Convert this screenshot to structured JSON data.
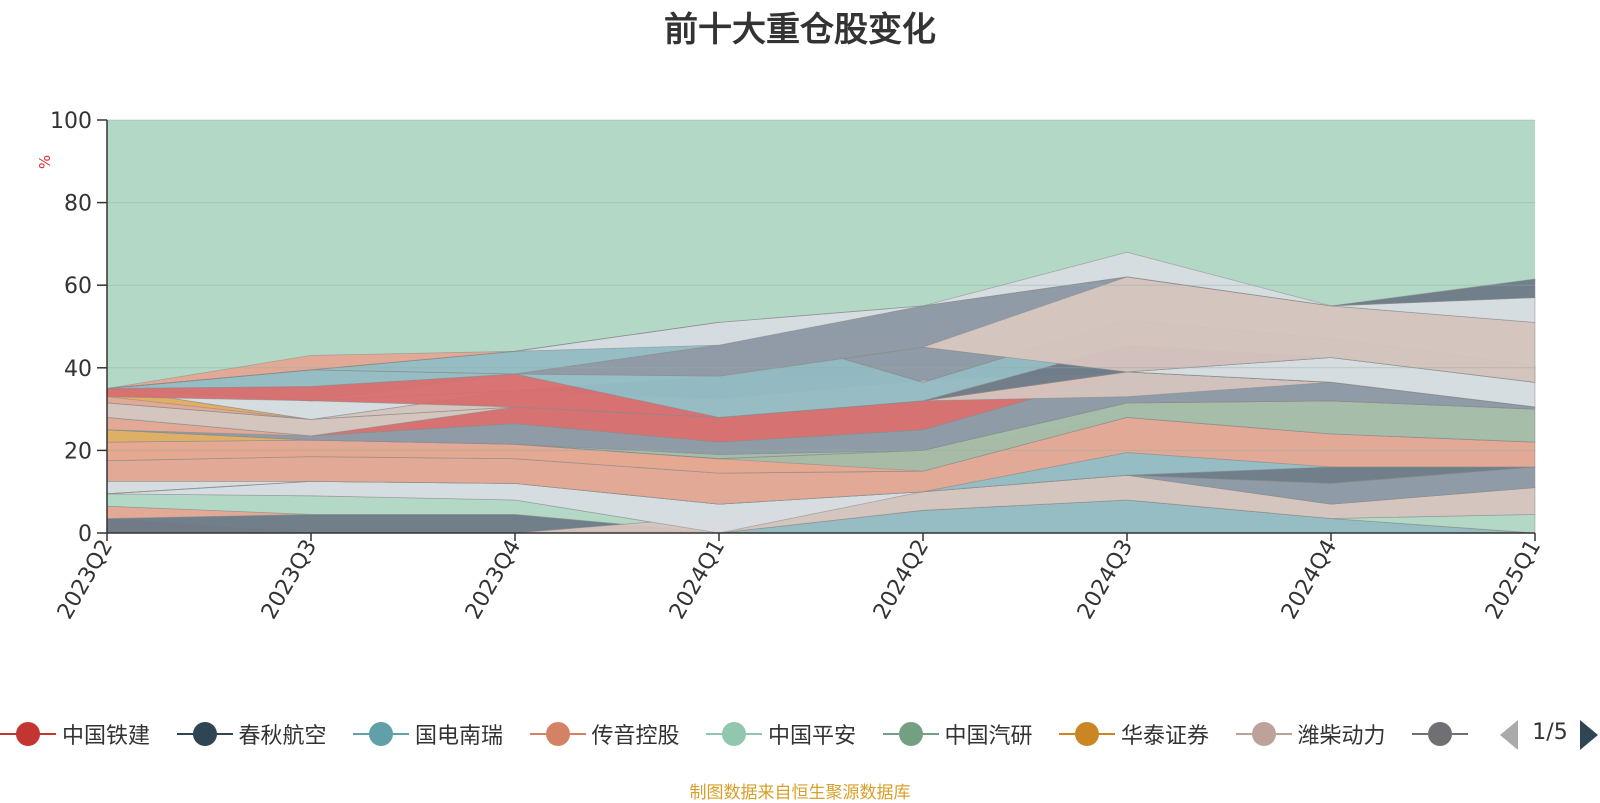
{
  "title": "前十大重仓股变化",
  "source": "制图数据来自恒生聚源数据库",
  "pager": {
    "text": "1/5"
  },
  "colors": {
    "background_area": "#b3d9c6",
    "grid": "#8fb0a0",
    "axis": "#333333",
    "unit": "#dd3333"
  },
  "chart_data": {
    "type": "area",
    "ylabel": "%",
    "ylim": [
      0,
      100
    ],
    "yticks": [
      0,
      20,
      40,
      60,
      80,
      100
    ],
    "grid": true,
    "legend_position": "bottom",
    "x": [
      "2023Q2",
      "2023Q3",
      "2023Q4",
      "2024Q1",
      "2024Q2",
      "2024Q3",
      "2024Q4",
      "2025Q1"
    ],
    "legend": [
      {
        "name": "中国铁建",
        "color": "#c23531"
      },
      {
        "name": "春秋航空",
        "color": "#2f4554"
      },
      {
        "name": "国电南瑞",
        "color": "#61a0a8"
      },
      {
        "name": "传音控股",
        "color": "#d48265"
      },
      {
        "name": "中国平安",
        "color": "#91c7ae"
      },
      {
        "name": "中国汽研",
        "color": "#749f83"
      },
      {
        "name": "华泰证券",
        "color": "#ca8622"
      },
      {
        "name": "潍柴动力",
        "color": "#bda29a"
      },
      {
        "name": "",
        "color": "#6e7074"
      }
    ],
    "bands": [
      {
        "color": "#d86e6e",
        "lower": [
          0,
          0,
          0,
          0,
          0,
          0,
          0,
          0
        ],
        "upper": [
          3.5,
          0,
          0,
          0,
          0,
          0,
          0,
          0
        ]
      },
      {
        "color": "#6e7a88",
        "lower": [
          0,
          0,
          0,
          0,
          0,
          0,
          0,
          0
        ],
        "upper": [
          3.5,
          4.5,
          4.5,
          0,
          0,
          0,
          0,
          0
        ]
      },
      {
        "color": "#93bcc3",
        "lower": [
          0,
          0,
          0,
          0,
          0,
          0,
          0,
          0
        ],
        "upper": [
          0,
          0,
          0,
          0,
          5.5,
          8,
          3.5,
          0
        ]
      },
      {
        "color": "#e5a893",
        "lower": [
          3.5,
          4.5,
          4.5,
          0,
          5.5,
          8,
          3.5,
          0
        ],
        "upper": [
          6.5,
          4.5,
          4.5,
          0,
          5.5,
          8,
          3.5,
          0
        ]
      },
      {
        "color": "#b3d9c6",
        "lower": [
          6.5,
          4.5,
          4.5,
          0,
          5.5,
          8,
          3.5,
          0
        ],
        "upper": [
          9.5,
          9,
          8,
          0,
          5.5,
          8,
          3.5,
          4.5
        ]
      },
      {
        "color": "#d6c4be",
        "lower": [
          0,
          0,
          0,
          0,
          5.5,
          8,
          3.5,
          4.5
        ],
        "upper": [
          0,
          0,
          0,
          4,
          10,
          14,
          7,
          11
        ]
      },
      {
        "color": "#d8dde3",
        "lower": [
          9.5,
          9,
          8,
          0,
          10,
          14,
          7,
          11
        ],
        "upper": [
          12.5,
          12.5,
          12,
          7,
          10,
          14,
          7,
          11
        ]
      },
      {
        "color": "#8d99a6",
        "lower": [
          9.5,
          12.5,
          12,
          7,
          10,
          14,
          7,
          11
        ],
        "upper": [
          9.5,
          12.5,
          12,
          7,
          10,
          14,
          12,
          16
        ]
      },
      {
        "color": "#6e7a88",
        "lower": [
          9.5,
          12.5,
          12,
          7,
          10,
          14,
          12,
          16
        ],
        "upper": [
          9.5,
          12.5,
          12,
          7,
          10,
          14,
          16,
          16
        ]
      },
      {
        "color": "#93bcc3",
        "lower": [
          9.5,
          12.5,
          12,
          7,
          10,
          14,
          16,
          16
        ],
        "upper": [
          9.5,
          12.5,
          12,
          7,
          10,
          19.5,
          16,
          16
        ]
      },
      {
        "color": "#e5a893",
        "lower": [
          12.5,
          12.5,
          12,
          7,
          10,
          19.5,
          16,
          16
        ],
        "upper": [
          17.5,
          18.5,
          18,
          14.5,
          15,
          28,
          24,
          22
        ]
      },
      {
        "color": "#e0ae62",
        "lower": [
          17.5,
          18.5,
          18,
          14.5,
          15,
          28,
          24,
          22
        ],
        "upper": [
          22,
          20.5,
          20.5,
          18,
          15,
          28,
          24,
          22
        ]
      },
      {
        "color": "#e5a893",
        "lower": [
          17.5,
          18.5,
          18,
          14.5,
          15,
          28,
          24,
          22
        ],
        "upper": [
          22,
          22.5,
          21.5,
          18,
          20,
          28,
          24,
          22
        ]
      },
      {
        "color": "#a4bca8",
        "lower": [
          22,
          22.5,
          21.5,
          18,
          15,
          28,
          24,
          22
        ],
        "upper": [
          22,
          22.5,
          21.5,
          19,
          20,
          31.5,
          32,
          30
        ]
      },
      {
        "color": "#e0ae62",
        "lower": [
          22,
          22.5,
          21.5,
          18,
          20,
          31.5,
          32,
          30
        ],
        "upper": [
          25,
          22.5,
          21.5,
          18,
          20,
          31.5,
          32,
          30
        ]
      },
      {
        "color": "#e5a893",
        "lower": [
          25,
          22.5,
          21.5,
          18,
          20,
          31.5,
          32,
          30
        ],
        "upper": [
          28,
          23.5,
          21.5,
          18,
          20,
          31.5,
          32,
          30
        ]
      },
      {
        "color": "#8d99a6",
        "lower": [
          25,
          22.5,
          21.5,
          19,
          20,
          31.5,
          32,
          30
        ],
        "upper": [
          25,
          23.5,
          26.5,
          22,
          25,
          39,
          36.5,
          30.5
        ]
      },
      {
        "color": "#d86e6e",
        "lower": [
          28,
          23.5,
          26.5,
          22,
          25,
          39,
          36.5,
          30.5
        ],
        "upper": [
          28,
          23.5,
          30.5,
          28,
          32,
          39,
          36.5,
          30.5
        ]
      },
      {
        "color": "#d6c4be",
        "lower": [
          28,
          23.5,
          30.5,
          28,
          32,
          33,
          36.5,
          30.5
        ],
        "upper": [
          31.5,
          27.5,
          34.5,
          32.5,
          37,
          39,
          36.5,
          30.5
        ]
      },
      {
        "color": "#e5a893",
        "lower": [
          31.5,
          27.5,
          30.5,
          28,
          32,
          39,
          36.5,
          30.5
        ],
        "upper": [
          35,
          27.5,
          30.5,
          28,
          32,
          39,
          36.5,
          30.5
        ]
      },
      {
        "color": "#e0ae62",
        "lower": [
          33,
          27.5,
          30.5,
          28,
          32,
          39,
          36.5,
          30.5
        ],
        "upper": [
          35,
          27.5,
          30.5,
          28,
          32,
          39,
          36.5,
          30.5
        ]
      },
      {
        "color": "#8d99a6",
        "lower": [
          31.5,
          27.5,
          34.5,
          32.5,
          37,
          39,
          36.5,
          30.5
        ],
        "upper": [
          31.5,
          27.5,
          34.5,
          38,
          45,
          39,
          36.5,
          30.5
        ]
      },
      {
        "color": "#d8dde3",
        "lower": [
          35,
          27.5,
          34.5,
          38,
          45,
          39,
          36.5,
          30.5
        ],
        "upper": [
          35,
          32,
          34.5,
          38,
          45,
          39,
          42.5,
          36.5
        ]
      },
      {
        "color": "#6e7a88",
        "lower": [
          35,
          32,
          34.5,
          38,
          32,
          39,
          42.5,
          36.5
        ],
        "upper": [
          35,
          32,
          34.5,
          38,
          32,
          45.5,
          42.5,
          36.5
        ]
      },
      {
        "color": "#d8dde3",
        "lower": [
          35,
          32,
          34.5,
          38,
          45,
          39,
          42.5,
          36.5
        ],
        "upper": [
          35,
          32,
          38.5,
          38,
          45,
          39,
          42.5,
          36.5
        ]
      },
      {
        "color": "#d86e6e",
        "lower": [
          33,
          32,
          30.5,
          28,
          32,
          39,
          36.5,
          30.5
        ],
        "upper": [
          35,
          35.5,
          38.5,
          28,
          32,
          39,
          36.5,
          30.5
        ]
      },
      {
        "color": "#93bcc3",
        "lower": [
          35,
          35.5,
          38.5,
          28,
          32,
          45.5,
          42.5,
          36.5
        ],
        "upper": [
          35,
          39.5,
          44,
          51,
          36.5,
          51.5,
          47,
          40.5
        ]
      },
      {
        "color": "#e5a893",
        "lower": [
          35,
          39.5,
          44,
          51,
          36.5,
          51.5,
          47,
          40.5
        ],
        "upper": [
          35,
          43,
          44,
          51,
          36.5,
          51.5,
          47,
          40.5
        ]
      },
      {
        "color": "#d6c4be",
        "lower": [
          35,
          39.5,
          38.5,
          38,
          45,
          39,
          42.5,
          36.5
        ],
        "upper": [
          35,
          39.5,
          38.5,
          45.5,
          50.5,
          62,
          55,
          51
        ]
      },
      {
        "color": "#8d99a6",
        "lower": [
          35,
          39.5,
          38.5,
          38,
          45,
          62,
          55,
          51
        ],
        "upper": [
          35,
          39.5,
          38.5,
          45.5,
          55,
          62,
          55,
          51
        ]
      },
      {
        "color": "#d8dde3",
        "lower": [
          35,
          39.5,
          44,
          45.5,
          55,
          62,
          55,
          51
        ],
        "upper": [
          35,
          39.5,
          44,
          51,
          55,
          68,
          55,
          57
        ]
      },
      {
        "color": "#6e7a88",
        "lower": [
          35,
          39.5,
          44,
          51,
          55,
          62,
          55,
          57
        ],
        "upper": [
          35,
          39.5,
          44,
          51,
          55,
          62,
          55,
          61.5
        ]
      }
    ]
  }
}
